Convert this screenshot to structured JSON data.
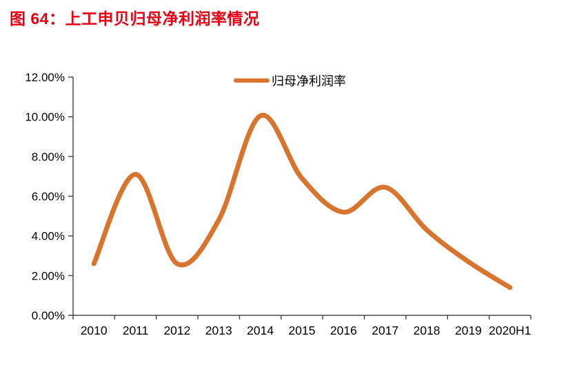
{
  "figure": {
    "title": "图 64：上工申贝归母净利润率情况"
  },
  "legend": {
    "label": "归母净利润率"
  },
  "colors": {
    "title_red": "#E60012",
    "line_orange": "#D8742E",
    "axis_gray": "#4a4a4a",
    "label_black": "#000000"
  },
  "chart_data": {
    "type": "line",
    "title": "图 64：上工申贝归母净利润率情况",
    "smooth": true,
    "grid": false,
    "legend_position": "top-center",
    "unit": "%",
    "categories": [
      "2010",
      "2011",
      "2012",
      "2013",
      "2014",
      "2015",
      "2016",
      "2017",
      "2018",
      "2019",
      "2020H1"
    ],
    "series": [
      {
        "name": "归母净利润率",
        "values": [
          2.6,
          7.1,
          2.6,
          4.8,
          10.05,
          6.9,
          5.2,
          6.45,
          4.3,
          2.7,
          1.4
        ]
      }
    ],
    "ylim": [
      0,
      12
    ],
    "y_ticks": [
      {
        "value": 0,
        "label": "0.00%"
      },
      {
        "value": 2,
        "label": "2.00%"
      },
      {
        "value": 4,
        "label": "4.00%"
      },
      {
        "value": 6,
        "label": "6.00%"
      },
      {
        "value": 8,
        "label": "8.00%"
      },
      {
        "value": 10,
        "label": "10.00%"
      },
      {
        "value": 12,
        "label": "12.00%"
      }
    ]
  }
}
